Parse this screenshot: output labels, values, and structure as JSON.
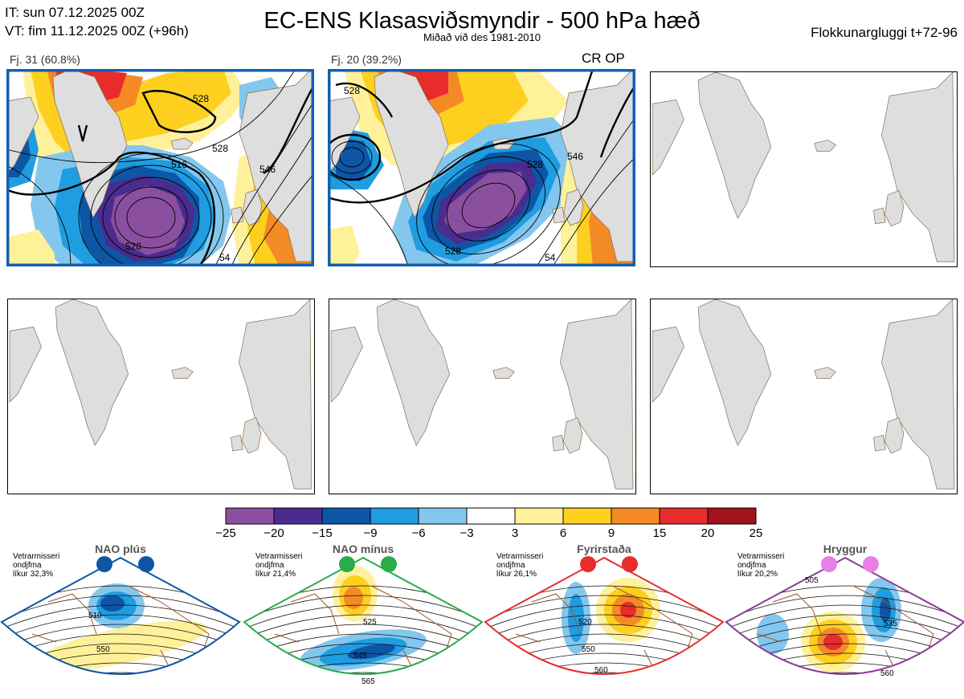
{
  "header": {
    "it_line": "IT: sun 07.12.2025 00Z",
    "vt_line": "VT: fim 11.12.2025 00Z  (+96h)",
    "title": "EC-ENS Klasasviðsmyndir - 500 hPa hæð",
    "subtitle": "Miðað við des 1981-2010",
    "window": "Flokkunargluggi t+72-96"
  },
  "clusters": [
    {
      "label": "Fj. 31 (60.8%)",
      "contour_labels": [
        "528",
        "528",
        "528",
        "546",
        "516",
        "528",
        "528",
        "54"
      ]
    },
    {
      "label": "Fj. 20 (39.2%)",
      "contour_labels": [
        "528",
        "546",
        "528",
        "528",
        "54"
      ],
      "tag": "CR OP"
    }
  ],
  "empty_panels": 4,
  "colorbar": {
    "ticks": [
      "−25",
      "−20",
      "−15",
      "−9",
      "−6",
      "−3",
      "3",
      "6",
      "9",
      "15",
      "20",
      "25"
    ],
    "colors": [
      "#8b4fa0",
      "#4a2c8f",
      "#0d56a5",
      "#1f9de0",
      "#84c7ee",
      "#ffffff",
      "#fff19a",
      "#fdd020",
      "#f48a26",
      "#e82c2c",
      "#a3131b"
    ]
  },
  "regimes": [
    {
      "name": "NAO plús",
      "note": [
        "Vetrarmisseri",
        "ondjfma",
        "líkur 32,3%"
      ],
      "labels": [
        "510",
        "550"
      ],
      "color": "#0d56a5",
      "dot": "#0d56a5"
    },
    {
      "name": "NAO mínus",
      "note": [
        "Vetrarmisseri",
        "ondjfma",
        "líkur 21,4%"
      ],
      "labels": [
        "525",
        "545",
        "565"
      ],
      "color": "#2bab4a",
      "dot": "#2bab4a"
    },
    {
      "name": "Fyrirstaða",
      "note": [
        "Vetrarmisseri",
        "ondjfma",
        "líkur 26,1%"
      ],
      "labels": [
        "520",
        "550",
        "560"
      ],
      "color": "#e82c2c",
      "dot": "#e82c2c"
    },
    {
      "name": "Hryggur",
      "note": [
        "Vetrarmisseri",
        "ondjfma",
        "líkur 20,2%"
      ],
      "labels": [
        "505",
        "535",
        "560"
      ],
      "color": "#8b3a96",
      "dot": "#e87fe8"
    }
  ]
}
